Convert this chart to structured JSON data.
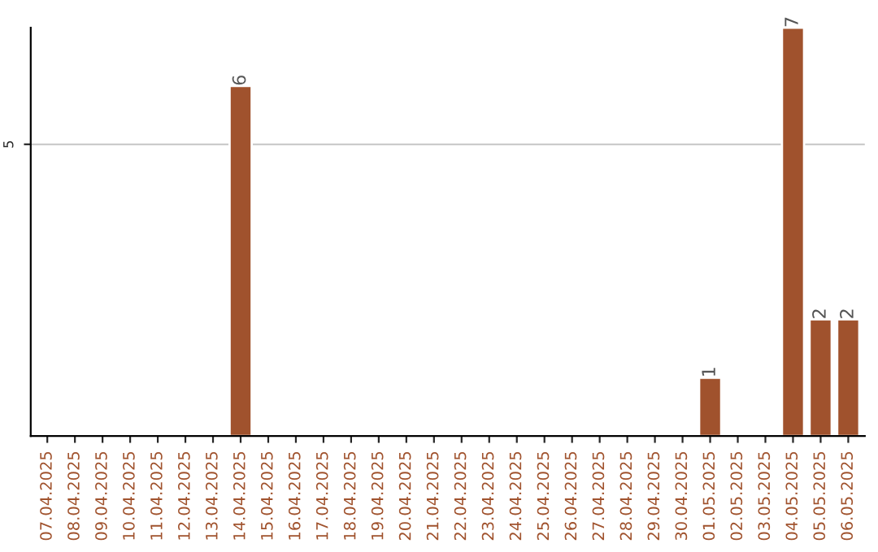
{
  "chart_data": {
    "type": "bar",
    "categories": [
      "07.04.2025",
      "08.04.2025",
      "09.04.2025",
      "10.04.2025",
      "11.04.2025",
      "12.04.2025",
      "13.04.2025",
      "14.04.2025",
      "15.04.2025",
      "16.04.2025",
      "17.04.2025",
      "18.04.2025",
      "19.04.2025",
      "20.04.2025",
      "21.04.2025",
      "22.04.2025",
      "23.04.2025",
      "24.04.2025",
      "25.04.2025",
      "26.04.2025",
      "27.04.2025",
      "28.04.2025",
      "29.04.2025",
      "30.04.2025",
      "01.05.2025",
      "02.05.2025",
      "03.05.2025",
      "04.05.2025",
      "05.05.2025",
      "06.05.2025"
    ],
    "values": [
      null,
      null,
      null,
      null,
      null,
      null,
      null,
      6,
      null,
      null,
      null,
      null,
      null,
      null,
      null,
      null,
      null,
      null,
      null,
      null,
      null,
      null,
      null,
      null,
      1,
      null,
      null,
      7,
      2,
      2
    ],
    "value_labels": [
      null,
      null,
      null,
      null,
      null,
      null,
      null,
      "6",
      null,
      null,
      null,
      null,
      null,
      null,
      null,
      null,
      null,
      null,
      null,
      null,
      null,
      null,
      null,
      null,
      "1",
      null,
      null,
      "7",
      "2",
      "2"
    ],
    "color": "#a0522d",
    "ylim": [
      0,
      7
    ],
    "yticks": [
      5
    ],
    "grid": "y",
    "legend": false
  }
}
